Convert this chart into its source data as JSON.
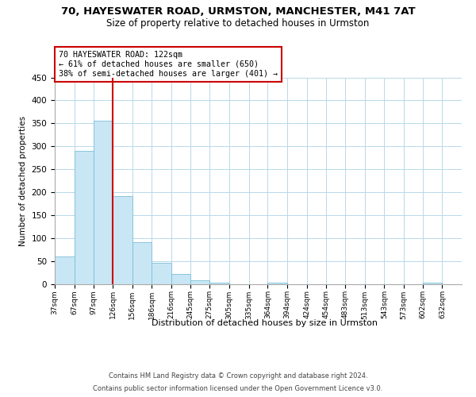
{
  "title": "70, HAYESWATER ROAD, URMSTON, MANCHESTER, M41 7AT",
  "subtitle": "Size of property relative to detached houses in Urmston",
  "xlabel": "Distribution of detached houses by size in Urmston",
  "ylabel": "Number of detached properties",
  "bin_labels": [
    "37sqm",
    "67sqm",
    "97sqm",
    "126sqm",
    "156sqm",
    "186sqm",
    "216sqm",
    "245sqm",
    "275sqm",
    "305sqm",
    "335sqm",
    "364sqm",
    "394sqm",
    "424sqm",
    "454sqm",
    "483sqm",
    "513sqm",
    "543sqm",
    "573sqm",
    "602sqm",
    "632sqm"
  ],
  "bar_values": [
    60,
    290,
    355,
    192,
    91,
    46,
    22,
    8,
    3,
    0,
    0,
    2,
    0,
    0,
    0,
    0,
    0,
    0,
    0,
    3
  ],
  "bar_color": "#c9e6f5",
  "bar_edge_color": "#7bbfd8",
  "vline_x_index": 3,
  "vline_color": "#cc0000",
  "annotation_title": "70 HAYESWATER ROAD: 122sqm",
  "annotation_line1": "← 61% of detached houses are smaller (650)",
  "annotation_line2": "38% of semi-detached houses are larger (401) →",
  "ylim": [
    0,
    450
  ],
  "yticks": [
    0,
    50,
    100,
    150,
    200,
    250,
    300,
    350,
    400,
    450
  ],
  "footer1": "Contains HM Land Registry data © Crown copyright and database right 2024.",
  "footer2": "Contains public sector information licensed under the Open Government Licence v3.0.",
  "bin_edges": [
    37,
    67,
    97,
    126,
    156,
    186,
    216,
    245,
    275,
    305,
    335,
    364,
    394,
    424,
    454,
    483,
    513,
    543,
    573,
    602,
    632
  ]
}
